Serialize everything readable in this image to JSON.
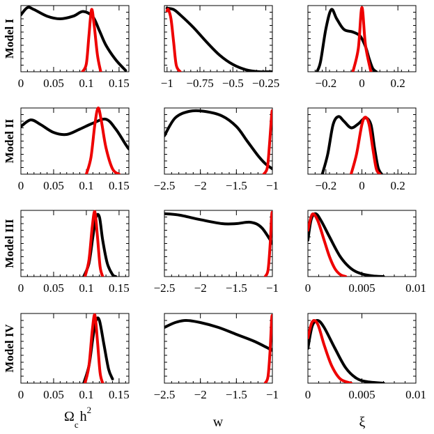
{
  "chart_data": {
    "type": "line",
    "rows": [
      "Model I",
      "Model II",
      "Model III",
      "Model IV"
    ],
    "columns": [
      {
        "param": "omega_c_h2",
        "xlabel": "Ω",
        "xlabel_sub": "c",
        "xlabel_rest": "h",
        "xlabel_sup": "2"
      },
      {
        "param": "w",
        "xlabel": "w"
      },
      {
        "param": "xi",
        "xlabel": "ξ"
      }
    ],
    "colors": {
      "black_series": "#000000",
      "red_series": "#ee0000"
    },
    "series_names": [
      "black",
      "red"
    ],
    "panels": [
      {
        "row": 0,
        "col": 0,
        "xlim": [
          0,
          0.165
        ],
        "ticks": [
          {
            "v": 0,
            "t": "0"
          },
          {
            "v": 0.05,
            "t": "0.05"
          },
          {
            "v": 0.1,
            "t": "0.1"
          },
          {
            "v": 0.15,
            "t": "0.15"
          }
        ],
        "black": [
          [
            0,
            0.86
          ],
          [
            0.01,
            0.97
          ],
          [
            0.02,
            0.94
          ],
          [
            0.04,
            0.84
          ],
          [
            0.06,
            0.8
          ],
          [
            0.08,
            0.84
          ],
          [
            0.095,
            0.91
          ],
          [
            0.11,
            0.83
          ],
          [
            0.12,
            0.62
          ],
          [
            0.13,
            0.4
          ],
          [
            0.145,
            0.18
          ],
          [
            0.16,
            0.02
          ]
        ],
        "red": [
          [
            0.094,
            0.0
          ],
          [
            0.1,
            0.12
          ],
          [
            0.104,
            0.55
          ],
          [
            0.108,
            0.94
          ],
          [
            0.112,
            0.7
          ],
          [
            0.117,
            0.25
          ],
          [
            0.122,
            0.0
          ]
        ]
      },
      {
        "row": 0,
        "col": 1,
        "xlim": [
          -1.02,
          -0.2
        ],
        "ticks": [
          {
            "v": -1,
            "t": "−1"
          },
          {
            "v": -0.75,
            "t": "−0.75"
          },
          {
            "v": -0.5,
            "t": "−0.5"
          },
          {
            "v": -0.25,
            "t": "−0.25"
          }
        ],
        "black": [
          [
            -1.0,
            0.96
          ],
          [
            -0.95,
            0.94
          ],
          [
            -0.9,
            0.86
          ],
          [
            -0.8,
            0.67
          ],
          [
            -0.7,
            0.45
          ],
          [
            -0.6,
            0.25
          ],
          [
            -0.5,
            0.11
          ],
          [
            -0.4,
            0.03
          ],
          [
            -0.3,
            0.0
          ],
          [
            -0.2,
            0.0
          ]
        ],
        "red": [
          [
            -1.0,
            0.92
          ],
          [
            -0.99,
            0.94
          ],
          [
            -0.97,
            0.8
          ],
          [
            -0.95,
            0.45
          ],
          [
            -0.93,
            0.1
          ],
          [
            -0.9,
            0.0
          ]
        ]
      },
      {
        "row": 0,
        "col": 2,
        "xlim": [
          -0.3,
          0.3
        ],
        "ticks": [
          {
            "v": -0.2,
            "t": "−0.2"
          },
          {
            "v": 0,
            "t": "0"
          },
          {
            "v": 0.2,
            "t": "0.2"
          }
        ],
        "black": [
          [
            -0.25,
            0.0
          ],
          [
            -0.23,
            0.15
          ],
          [
            -0.2,
            0.65
          ],
          [
            -0.17,
            0.94
          ],
          [
            -0.14,
            0.8
          ],
          [
            -0.1,
            0.64
          ],
          [
            -0.05,
            0.6
          ],
          [
            -0.01,
            0.54
          ],
          [
            0.02,
            0.38
          ],
          [
            0.04,
            0.2
          ],
          [
            0.06,
            0.05
          ],
          [
            0.08,
            0.0
          ]
        ],
        "red": [
          [
            -0.05,
            0.0
          ],
          [
            -0.02,
            0.35
          ],
          [
            0.0,
            0.97
          ],
          [
            0.02,
            0.4
          ],
          [
            0.05,
            0.0
          ]
        ]
      },
      {
        "row": 1,
        "col": 0,
        "xlim": [
          0,
          0.165
        ],
        "ticks": [
          {
            "v": 0,
            "t": "0"
          },
          {
            "v": 0.05,
            "t": "0.05"
          },
          {
            "v": 0.1,
            "t": "0.1"
          },
          {
            "v": 0.15,
            "t": "0.15"
          }
        ],
        "black": [
          [
            0,
            0.72
          ],
          [
            0.015,
            0.82
          ],
          [
            0.03,
            0.75
          ],
          [
            0.05,
            0.63
          ],
          [
            0.07,
            0.6
          ],
          [
            0.09,
            0.68
          ],
          [
            0.11,
            0.77
          ],
          [
            0.13,
            0.83
          ],
          [
            0.145,
            0.68
          ],
          [
            0.16,
            0.45
          ],
          [
            0.165,
            0.38
          ]
        ],
        "red": [
          [
            0.1,
            0.0
          ],
          [
            0.107,
            0.25
          ],
          [
            0.113,
            0.75
          ],
          [
            0.118,
            1.0
          ],
          [
            0.123,
            0.8
          ],
          [
            0.13,
            0.4
          ],
          [
            0.14,
            0.08
          ],
          [
            0.15,
            0.0
          ]
        ]
      },
      {
        "row": 1,
        "col": 1,
        "xlim": [
          -2.5,
          -1.0
        ],
        "ticks": [
          {
            "v": -2.5,
            "t": "−2.5"
          },
          {
            "v": -2,
            "t": "−2"
          },
          {
            "v": -1.5,
            "t": "−1.5"
          },
          {
            "v": -1,
            "t": "−1"
          }
        ],
        "black": [
          [
            -2.5,
            0.58
          ],
          [
            -2.35,
            0.85
          ],
          [
            -2.15,
            0.95
          ],
          [
            -1.95,
            0.95
          ],
          [
            -1.7,
            0.88
          ],
          [
            -1.5,
            0.72
          ],
          [
            -1.35,
            0.5
          ],
          [
            -1.2,
            0.28
          ],
          [
            -1.1,
            0.16
          ],
          [
            -1.0,
            0.08
          ]
        ],
        "red": [
          [
            -1.12,
            0.0
          ],
          [
            -1.07,
            0.1
          ],
          [
            -1.04,
            0.45
          ],
          [
            -1.01,
            0.9
          ],
          [
            -1.0,
            0.96
          ]
        ]
      },
      {
        "row": 1,
        "col": 2,
        "xlim": [
          -0.3,
          0.3
        ],
        "ticks": [
          {
            "v": -0.2,
            "t": "−0.2"
          },
          {
            "v": 0,
            "t": "0"
          },
          {
            "v": 0.2,
            "t": "0.2"
          }
        ],
        "black": [
          [
            -0.22,
            0.0
          ],
          [
            -0.19,
            0.3
          ],
          [
            -0.16,
            0.75
          ],
          [
            -0.13,
            0.87
          ],
          [
            -0.1,
            0.8
          ],
          [
            -0.06,
            0.7
          ],
          [
            -0.02,
            0.76
          ],
          [
            0.02,
            0.85
          ],
          [
            0.05,
            0.75
          ],
          [
            0.07,
            0.4
          ],
          [
            0.09,
            0.1
          ],
          [
            0.11,
            0.0
          ]
        ],
        "red": [
          [
            -0.06,
            0.0
          ],
          [
            -0.03,
            0.3
          ],
          [
            0.0,
            0.75
          ],
          [
            0.02,
            0.86
          ],
          [
            0.04,
            0.75
          ],
          [
            0.06,
            0.4
          ],
          [
            0.08,
            0.08
          ],
          [
            0.1,
            0.0
          ]
        ]
      },
      {
        "row": 2,
        "col": 0,
        "xlim": [
          0,
          0.165
        ],
        "ticks": [
          {
            "v": 0,
            "t": "0"
          },
          {
            "v": 0.05,
            "t": "0.05"
          },
          {
            "v": 0.1,
            "t": "0.1"
          },
          {
            "v": 0.15,
            "t": "0.15"
          }
        ],
        "black": [
          [
            0.096,
            0.0
          ],
          [
            0.104,
            0.2
          ],
          [
            0.11,
            0.6
          ],
          [
            0.115,
            0.9
          ],
          [
            0.12,
            0.9
          ],
          [
            0.125,
            0.55
          ],
          [
            0.132,
            0.2
          ],
          [
            0.14,
            0.03
          ],
          [
            0.145,
            0.0
          ]
        ],
        "red": [
          [
            0.098,
            0.0
          ],
          [
            0.104,
            0.25
          ],
          [
            0.109,
            0.75
          ],
          [
            0.113,
            0.98
          ],
          [
            0.117,
            0.6
          ],
          [
            0.121,
            0.15
          ],
          [
            0.125,
            0.0
          ]
        ]
      },
      {
        "row": 2,
        "col": 1,
        "xlim": [
          -2.5,
          -1.0
        ],
        "ticks": [
          {
            "v": -2.5,
            "t": "−2.5"
          },
          {
            "v": -2,
            "t": "−2"
          },
          {
            "v": -1.5,
            "t": "−1.5"
          },
          {
            "v": -1,
            "t": "−1"
          }
        ],
        "black": [
          [
            -2.5,
            0.95
          ],
          [
            -2.3,
            0.93
          ],
          [
            -2.0,
            0.86
          ],
          [
            -1.7,
            0.8
          ],
          [
            -1.5,
            0.8
          ],
          [
            -1.3,
            0.82
          ],
          [
            -1.15,
            0.74
          ],
          [
            -1.0,
            0.5
          ]
        ],
        "red": [
          [
            -1.1,
            0.0
          ],
          [
            -1.06,
            0.1
          ],
          [
            -1.03,
            0.5
          ],
          [
            -1.01,
            0.92
          ],
          [
            -1.0,
            0.97
          ]
        ]
      },
      {
        "row": 2,
        "col": 2,
        "xlim": [
          0,
          0.01
        ],
        "ticks": [
          {
            "v": 0,
            "t": "0"
          },
          {
            "v": 0.005,
            "t": "0.005"
          },
          {
            "v": 0.01,
            "t": "0.01"
          }
        ],
        "black": [
          [
            0,
            0.55
          ],
          [
            0.0003,
            0.86
          ],
          [
            0.0007,
            0.95
          ],
          [
            0.0012,
            0.85
          ],
          [
            0.002,
            0.6
          ],
          [
            0.003,
            0.3
          ],
          [
            0.004,
            0.12
          ],
          [
            0.005,
            0.04
          ],
          [
            0.006,
            0.01
          ],
          [
            0.007,
            0.0
          ]
        ],
        "red": [
          [
            0,
            0.7
          ],
          [
            0.0004,
            0.94
          ],
          [
            0.0009,
            0.85
          ],
          [
            0.0015,
            0.55
          ],
          [
            0.002,
            0.3
          ],
          [
            0.0025,
            0.12
          ],
          [
            0.003,
            0.03
          ],
          [
            0.0035,
            0.0
          ]
        ]
      },
      {
        "row": 3,
        "col": 0,
        "xlim": [
          0,
          0.165
        ],
        "ticks": [
          {
            "v": 0,
            "t": "0"
          },
          {
            "v": 0.05,
            "t": "0.05"
          },
          {
            "v": 0.1,
            "t": "0.1"
          },
          {
            "v": 0.15,
            "t": "0.15"
          }
        ],
        "black": [
          [
            0.096,
            0.0
          ],
          [
            0.104,
            0.25
          ],
          [
            0.11,
            0.65
          ],
          [
            0.115,
            0.9
          ],
          [
            0.12,
            0.9
          ],
          [
            0.127,
            0.55
          ],
          [
            0.134,
            0.2
          ],
          [
            0.14,
            0.06
          ]
        ],
        "red": [
          [
            0.098,
            0.0
          ],
          [
            0.104,
            0.25
          ],
          [
            0.109,
            0.75
          ],
          [
            0.113,
            0.98
          ],
          [
            0.117,
            0.6
          ],
          [
            0.121,
            0.15
          ],
          [
            0.125,
            0.0
          ]
        ]
      },
      {
        "row": 3,
        "col": 1,
        "xlim": [
          -2.5,
          -1.0
        ],
        "ticks": [
          {
            "v": -2.5,
            "t": "−2.5"
          },
          {
            "v": -2,
            "t": "−2"
          },
          {
            "v": -1.5,
            "t": "−1.5"
          },
          {
            "v": -1,
            "t": "−1"
          }
        ],
        "black": [
          [
            -2.5,
            0.8
          ],
          [
            -2.35,
            0.87
          ],
          [
            -2.2,
            0.9
          ],
          [
            -2.0,
            0.87
          ],
          [
            -1.75,
            0.8
          ],
          [
            -1.5,
            0.7
          ],
          [
            -1.25,
            0.6
          ],
          [
            -1.0,
            0.47
          ]
        ],
        "red": [
          [
            -1.1,
            0.0
          ],
          [
            -1.06,
            0.1
          ],
          [
            -1.03,
            0.5
          ],
          [
            -1.01,
            0.92
          ],
          [
            -1.0,
            0.97
          ]
        ]
      },
      {
        "row": 3,
        "col": 2,
        "xlim": [
          0,
          0.01
        ],
        "ticks": [
          {
            "v": 0,
            "t": "0"
          },
          {
            "v": 0.005,
            "t": "0.005"
          },
          {
            "v": 0.01,
            "t": "0.01"
          }
        ],
        "black": [
          [
            0,
            0.5
          ],
          [
            0.0004,
            0.82
          ],
          [
            0.0009,
            0.9
          ],
          [
            0.0015,
            0.8
          ],
          [
            0.0025,
            0.5
          ],
          [
            0.0035,
            0.22
          ],
          [
            0.0045,
            0.07
          ],
          [
            0.0055,
            0.02
          ],
          [
            0.007,
            0.0
          ]
        ],
        "red": [
          [
            0,
            0.65
          ],
          [
            0.0004,
            0.88
          ],
          [
            0.0009,
            0.85
          ],
          [
            0.0015,
            0.55
          ],
          [
            0.0022,
            0.25
          ],
          [
            0.003,
            0.06
          ],
          [
            0.004,
            0.0
          ]
        ]
      }
    ]
  }
}
